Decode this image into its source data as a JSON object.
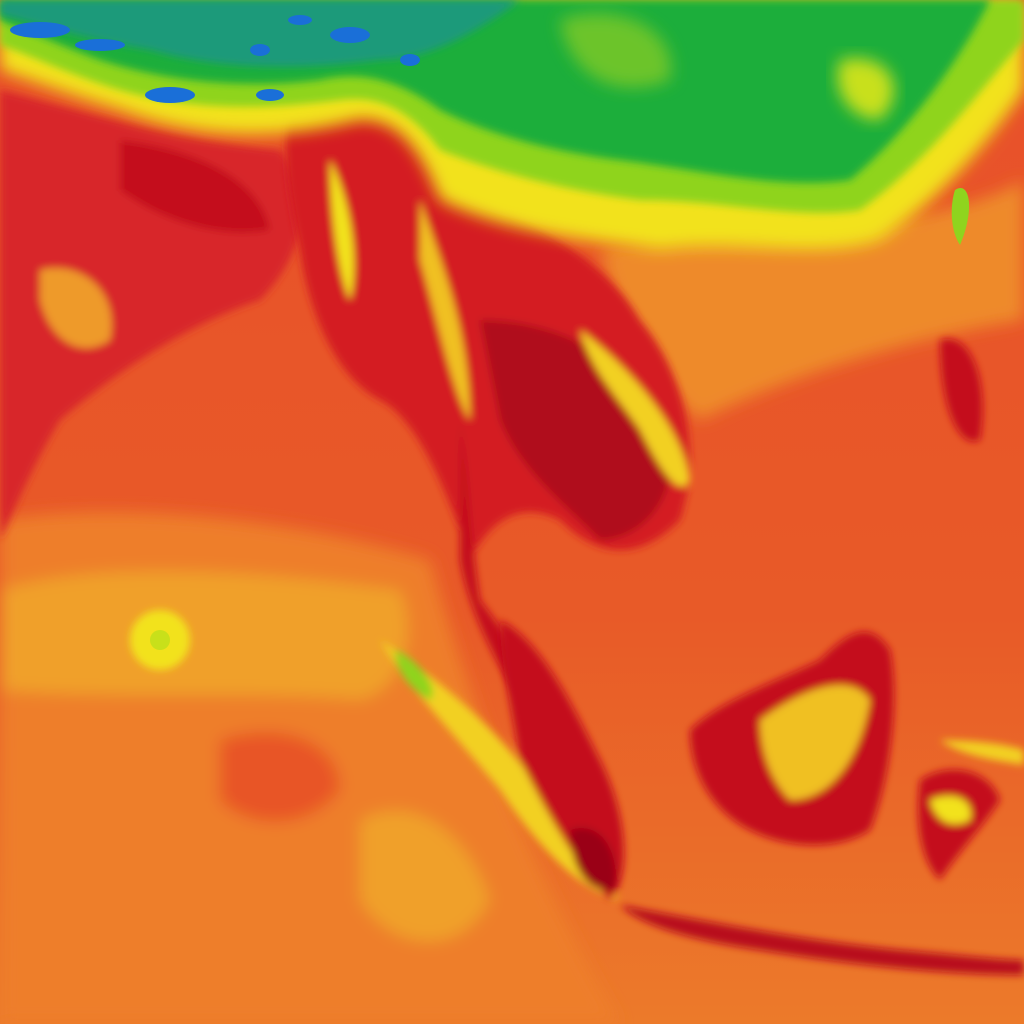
{
  "map": {
    "type": "heatmap",
    "colors": {
      "cold": "#1a6fd8",
      "cool": "#1fae3a",
      "mild": "#8fd41e",
      "warm": "#f2e21a",
      "hot_light": "#ee8a2a",
      "hot": "#e8502a",
      "very_hot": "#d81e22",
      "extreme": "#a5001a"
    }
  }
}
